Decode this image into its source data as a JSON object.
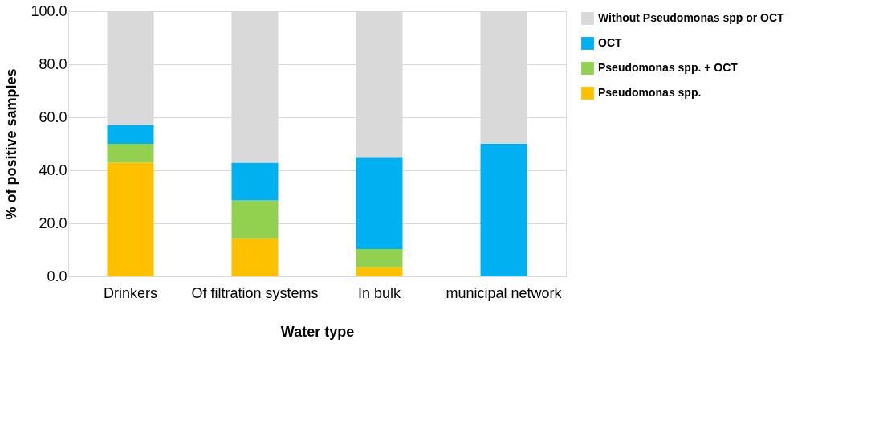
{
  "chart_data": {
    "type": "bar",
    "stacked": true,
    "xlabel": "Water type",
    "ylabel": "% of positive samples",
    "categories": [
      "Drinkers",
      "Of filtration systems",
      "In bulk",
      "municipal network"
    ],
    "series": [
      {
        "name": "Pseudomonas spp.",
        "color": "#ffc000",
        "values": [
          42.9,
          14.3,
          3.4,
          0
        ]
      },
      {
        "name": "Pseudomonas spp. + OCT",
        "color": "#92d050",
        "values": [
          7.1,
          14.3,
          6.9,
          0
        ]
      },
      {
        "name": "OCT",
        "color": "#00b0f0",
        "values": [
          7.1,
          14.3,
          34.5,
          50.0
        ]
      },
      {
        "name": "Without Pseudomonas spp or OCT",
        "color": "#d9d9d9",
        "values": [
          42.9,
          57.1,
          55.2,
          50.0
        ]
      }
    ],
    "ylim": [
      0,
      100
    ],
    "yticks": [
      {
        "value": 0,
        "label": "0.0"
      },
      {
        "value": 20,
        "label": "20.0"
      },
      {
        "value": 40,
        "label": "40.0"
      },
      {
        "value": 60,
        "label": "60.0"
      },
      {
        "value": 80,
        "label": "80.0"
      },
      {
        "value": 100,
        "label": "100.0"
      }
    ],
    "grid": "y",
    "legend": "top right"
  }
}
